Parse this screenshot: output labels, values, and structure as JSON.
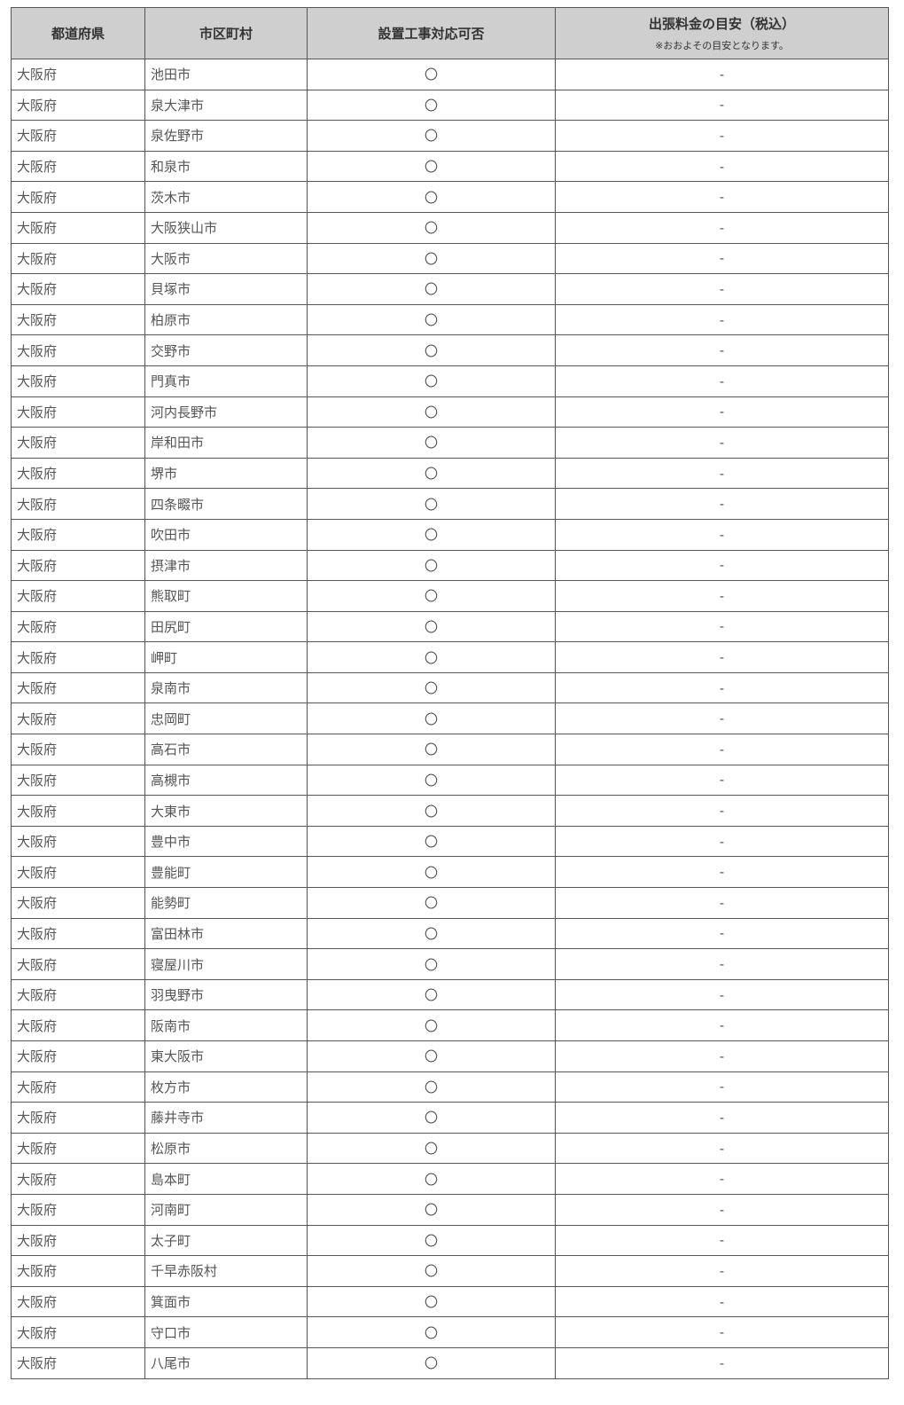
{
  "header": {
    "prefecture": "都道府県",
    "city": "市区町村",
    "installation": "設置工事対応可否",
    "fee": "出張料金の目安（税込）",
    "fee_note": "※おおよその目安となります。"
  },
  "rows": [
    {
      "pref": "大阪府",
      "city": "池田市",
      "ok": "〇",
      "fee": "-"
    },
    {
      "pref": "大阪府",
      "city": "泉大津市",
      "ok": "〇",
      "fee": "-"
    },
    {
      "pref": "大阪府",
      "city": "泉佐野市",
      "ok": "〇",
      "fee": "-"
    },
    {
      "pref": "大阪府",
      "city": "和泉市",
      "ok": "〇",
      "fee": "-"
    },
    {
      "pref": "大阪府",
      "city": "茨木市",
      "ok": "〇",
      "fee": "-"
    },
    {
      "pref": "大阪府",
      "city": "大阪狭山市",
      "ok": "〇",
      "fee": "-"
    },
    {
      "pref": "大阪府",
      "city": "大阪市",
      "ok": "〇",
      "fee": "-"
    },
    {
      "pref": "大阪府",
      "city": "貝塚市",
      "ok": "〇",
      "fee": "-"
    },
    {
      "pref": "大阪府",
      "city": "柏原市",
      "ok": "〇",
      "fee": "-"
    },
    {
      "pref": "大阪府",
      "city": "交野市",
      "ok": "〇",
      "fee": "-"
    },
    {
      "pref": "大阪府",
      "city": "門真市",
      "ok": "〇",
      "fee": "-"
    },
    {
      "pref": "大阪府",
      "city": "河内長野市",
      "ok": "〇",
      "fee": "-"
    },
    {
      "pref": "大阪府",
      "city": "岸和田市",
      "ok": "〇",
      "fee": "-"
    },
    {
      "pref": "大阪府",
      "city": "堺市",
      "ok": "〇",
      "fee": "-"
    },
    {
      "pref": "大阪府",
      "city": "四条畷市",
      "ok": "〇",
      "fee": "-"
    },
    {
      "pref": "大阪府",
      "city": "吹田市",
      "ok": "〇",
      "fee": "-"
    },
    {
      "pref": "大阪府",
      "city": "摂津市",
      "ok": "〇",
      "fee": "-"
    },
    {
      "pref": "大阪府",
      "city": "熊取町",
      "ok": "〇",
      "fee": "-"
    },
    {
      "pref": "大阪府",
      "city": "田尻町",
      "ok": "〇",
      "fee": "-"
    },
    {
      "pref": "大阪府",
      "city": "岬町",
      "ok": "〇",
      "fee": "-"
    },
    {
      "pref": "大阪府",
      "city": "泉南市",
      "ok": "〇",
      "fee": "-"
    },
    {
      "pref": "大阪府",
      "city": "忠岡町",
      "ok": "〇",
      "fee": "-"
    },
    {
      "pref": "大阪府",
      "city": "高石市",
      "ok": "〇",
      "fee": "-"
    },
    {
      "pref": "大阪府",
      "city": "高槻市",
      "ok": "〇",
      "fee": "-"
    },
    {
      "pref": "大阪府",
      "city": "大東市",
      "ok": "〇",
      "fee": "-"
    },
    {
      "pref": "大阪府",
      "city": "豊中市",
      "ok": "〇",
      "fee": "-"
    },
    {
      "pref": "大阪府",
      "city": "豊能町",
      "ok": "〇",
      "fee": "-"
    },
    {
      "pref": "大阪府",
      "city": "能勢町",
      "ok": "〇",
      "fee": "-"
    },
    {
      "pref": "大阪府",
      "city": "富田林市",
      "ok": "〇",
      "fee": "-"
    },
    {
      "pref": "大阪府",
      "city": "寝屋川市",
      "ok": "〇",
      "fee": "-"
    },
    {
      "pref": "大阪府",
      "city": "羽曳野市",
      "ok": "〇",
      "fee": "-"
    },
    {
      "pref": "大阪府",
      "city": "阪南市",
      "ok": "〇",
      "fee": "-"
    },
    {
      "pref": "大阪府",
      "city": "東大阪市",
      "ok": "〇",
      "fee": "-"
    },
    {
      "pref": "大阪府",
      "city": "枚方市",
      "ok": "〇",
      "fee": "-"
    },
    {
      "pref": "大阪府",
      "city": "藤井寺市",
      "ok": "〇",
      "fee": "-"
    },
    {
      "pref": "大阪府",
      "city": "松原市",
      "ok": "〇",
      "fee": "-"
    },
    {
      "pref": "大阪府",
      "city": "島本町",
      "ok": "〇",
      "fee": "-"
    },
    {
      "pref": "大阪府",
      "city": "河南町",
      "ok": "〇",
      "fee": "-"
    },
    {
      "pref": "大阪府",
      "city": "太子町",
      "ok": "〇",
      "fee": "-"
    },
    {
      "pref": "大阪府",
      "city": "千早赤阪村",
      "ok": "〇",
      "fee": "-"
    },
    {
      "pref": "大阪府",
      "city": "箕面市",
      "ok": "〇",
      "fee": "-"
    },
    {
      "pref": "大阪府",
      "city": "守口市",
      "ok": "〇",
      "fee": "-"
    },
    {
      "pref": "大阪府",
      "city": "八尾市",
      "ok": "〇",
      "fee": "-"
    }
  ]
}
